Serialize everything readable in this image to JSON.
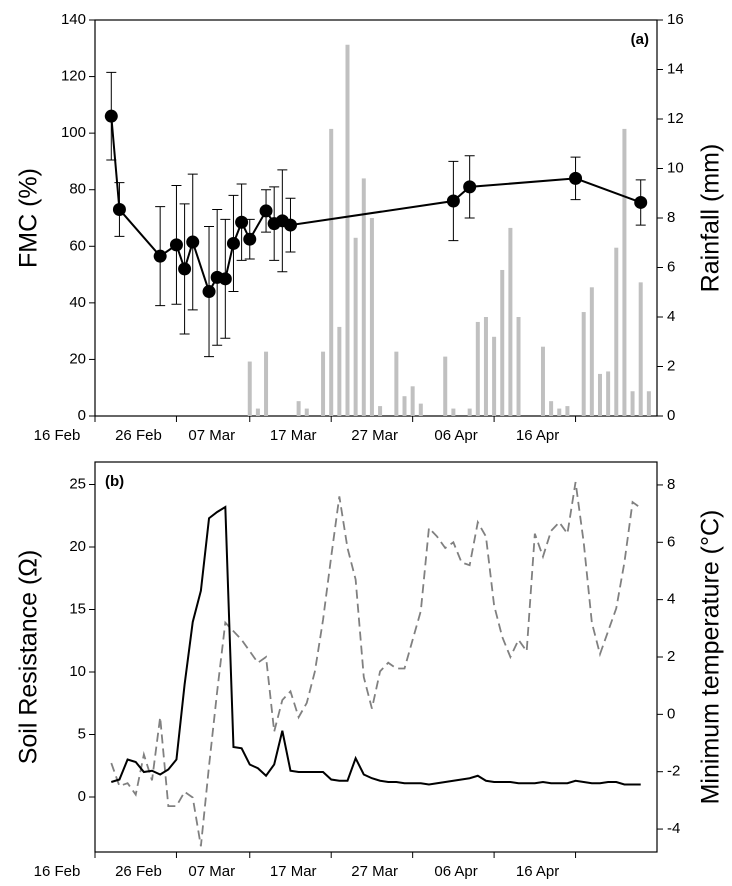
{
  "chart_data": [
    {
      "type": "line",
      "annotation": "(a)",
      "annotation_position": "top-right",
      "ylabel": "FMC (%)",
      "y2label": "Rainfall (mm)",
      "xlim": [
        "16 Feb",
        "26 Apr"
      ],
      "xticks": [
        "16 Feb",
        "26 Feb",
        "07 Mar",
        "17 Mar",
        "27 Mar",
        "06 Apr",
        "16 Apr"
      ],
      "ylim": [
        0,
        140
      ],
      "yticks": [
        0,
        20,
        40,
        60,
        80,
        100,
        120,
        140
      ],
      "y2lim": [
        0,
        16
      ],
      "y2ticks": [
        0,
        2,
        4,
        6,
        8,
        10,
        12,
        14,
        16
      ],
      "series": [
        {
          "type": "bar",
          "axis": "y2",
          "color": "#c0c0c0",
          "x": [
            "07 Mar",
            "08 Mar",
            "09 Mar",
            "13 Mar",
            "14 Mar",
            "16 Mar",
            "17 Mar",
            "18 Mar",
            "19 Mar",
            "20 Mar",
            "21 Mar",
            "22 Mar",
            "23 Mar",
            "25 Mar",
            "26 Mar",
            "27 Mar",
            "28 Mar",
            "31 Mar",
            "01 Apr",
            "03 Apr",
            "04 Apr",
            "05 Apr",
            "06 Apr",
            "07 Apr",
            "08 Apr",
            "09 Apr",
            "12 Apr",
            "13 Apr",
            "14 Apr",
            "15 Apr",
            "17 Apr",
            "18 Apr",
            "19 Apr",
            "20 Apr",
            "21 Apr",
            "22 Apr",
            "23 Apr",
            "24 Apr",
            "25 Apr"
          ],
          "values": [
            2.2,
            0.3,
            2.6,
            0.6,
            0.3,
            2.6,
            11.6,
            3.6,
            15.0,
            7.2,
            9.6,
            8.0,
            0.4,
            2.6,
            0.8,
            1.2,
            0.5,
            2.4,
            0.3,
            0.3,
            3.8,
            4.0,
            3.2,
            5.9,
            7.6,
            4.0,
            2.8,
            0.6,
            0.3,
            0.4,
            4.2,
            5.2,
            1.7,
            1.8,
            6.8,
            11.6,
            1.0,
            5.4,
            1.0
          ]
        },
        {
          "type": "line",
          "color": "#000000",
          "marker": "circle",
          "x": [
            "18 Feb",
            "19 Feb",
            "24 Feb",
            "26 Feb",
            "27 Feb",
            "28 Feb",
            "02 Mar",
            "03 Mar",
            "04 Mar",
            "05 Mar",
            "06 Mar",
            "07 Mar",
            "09 Mar",
            "10 Mar",
            "11 Mar",
            "12 Mar",
            "01 Apr",
            "03 Apr",
            "16 Apr",
            "24 Apr"
          ],
          "values": [
            106,
            73,
            56.5,
            60.5,
            52,
            61.5,
            44,
            49,
            48.5,
            61,
            68.5,
            62.5,
            72.5,
            68,
            69,
            67.5,
            76,
            81,
            84,
            75.5
          ],
          "errors": [
            15.5,
            9.5,
            17.5,
            21,
            23,
            24,
            23,
            24,
            21,
            17,
            13.5,
            7,
            7.5,
            13,
            18,
            9.5,
            14,
            11,
            7.5,
            8
          ]
        }
      ]
    },
    {
      "type": "line",
      "annotation": "(b)",
      "annotation_position": "top-left",
      "ylabel": "Soil Resistance (Ω)",
      "y2label": "Minimum temperature (°C)",
      "xlim": [
        "16 Feb",
        "26 Apr"
      ],
      "xticks": [
        "16 Feb",
        "26 Feb",
        "07 Mar",
        "17 Mar",
        "27 Mar",
        "06 Apr",
        "16 Apr"
      ],
      "ylim": [
        -4.4,
        26.8
      ],
      "yticks": [
        0,
        5,
        10,
        15,
        20,
        25
      ],
      "y2lim": [
        -4.8,
        8.8
      ],
      "y2ticks": [
        -4,
        -2,
        0,
        2,
        4,
        6,
        8
      ],
      "x": [
        "18 Feb",
        "19 Feb",
        "20 Feb",
        "21 Feb",
        "22 Feb",
        "23 Feb",
        "24 Feb",
        "25 Feb",
        "26 Feb",
        "27 Feb",
        "28 Feb",
        "01 Mar",
        "02 Mar",
        "03 Mar",
        "04 Mar",
        "05 Mar",
        "06 Mar",
        "07 Mar",
        "08 Mar",
        "09 Mar",
        "10 Mar",
        "11 Mar",
        "12 Mar",
        "13 Mar",
        "14 Mar",
        "15 Mar",
        "16 Mar",
        "17 Mar",
        "18 Mar",
        "19 Mar",
        "20 Mar",
        "21 Mar",
        "22 Mar",
        "23 Mar",
        "24 Mar",
        "25 Mar",
        "26 Mar",
        "27 Mar",
        "28 Mar",
        "29 Mar",
        "30 Mar",
        "31 Mar",
        "01 Apr",
        "02 Apr",
        "03 Apr",
        "04 Apr",
        "05 Apr",
        "06 Apr",
        "07 Apr",
        "08 Apr",
        "09 Apr",
        "10 Apr",
        "11 Apr",
        "12 Apr",
        "13 Apr",
        "14 Apr",
        "15 Apr",
        "16 Apr",
        "17 Apr",
        "18 Apr",
        "19 Apr",
        "20 Apr",
        "21 Apr",
        "22 Apr",
        "23 Apr",
        "24 Apr"
      ],
      "series": [
        {
          "type": "line",
          "axis": "y2",
          "color": "#808080",
          "style": "dashed",
          "values": [
            -1.7,
            -2.5,
            -2.4,
            -2.8,
            -1.4,
            -2.3,
            -0.1,
            -3.2,
            -3.2,
            -2.7,
            -2.9,
            -4.6,
            -1.8,
            0.8,
            3.2,
            2.9,
            2.6,
            2.2,
            1.8,
            2.0,
            -0.6,
            0.5,
            0.8,
            -0.1,
            0.4,
            1.5,
            3.3,
            5.5,
            7.6,
            5.8,
            4.7,
            1.3,
            0.2,
            1.5,
            1.8,
            1.6,
            1.6,
            2.6,
            3.6,
            6.5,
            6.2,
            5.8,
            6.0,
            5.3,
            5.2,
            6.7,
            6.2,
            3.8,
            2.7,
            2.0,
            2.6,
            2.2,
            6.3,
            5.5,
            6.4,
            6.7,
            6.3,
            8.1,
            6.0,
            3.2,
            2.1,
            2.9,
            3.7,
            5.3,
            7.4,
            7.2
          ]
        },
        {
          "type": "line",
          "color": "#000000",
          "style": "solid",
          "values": [
            1.2,
            1.4,
            3.0,
            2.8,
            2.0,
            2.1,
            1.8,
            2.2,
            3.0,
            9.0,
            14.0,
            16.5,
            22.3,
            22.8,
            23.2,
            4.0,
            3.9,
            2.6,
            2.3,
            1.7,
            2.6,
            5.3,
            2.1,
            2.0,
            2.0,
            2.0,
            2.0,
            1.4,
            1.3,
            1.3,
            3.1,
            1.8,
            1.5,
            1.3,
            1.2,
            1.2,
            1.1,
            1.1,
            1.1,
            1.0,
            1.1,
            1.2,
            1.3,
            1.4,
            1.5,
            1.7,
            1.3,
            1.2,
            1.2,
            1.2,
            1.1,
            1.1,
            1.1,
            1.2,
            1.1,
            1.1,
            1.1,
            1.3,
            1.2,
            1.1,
            1.1,
            1.2,
            1.2,
            1.0,
            1.0,
            1.0
          ]
        }
      ]
    }
  ]
}
